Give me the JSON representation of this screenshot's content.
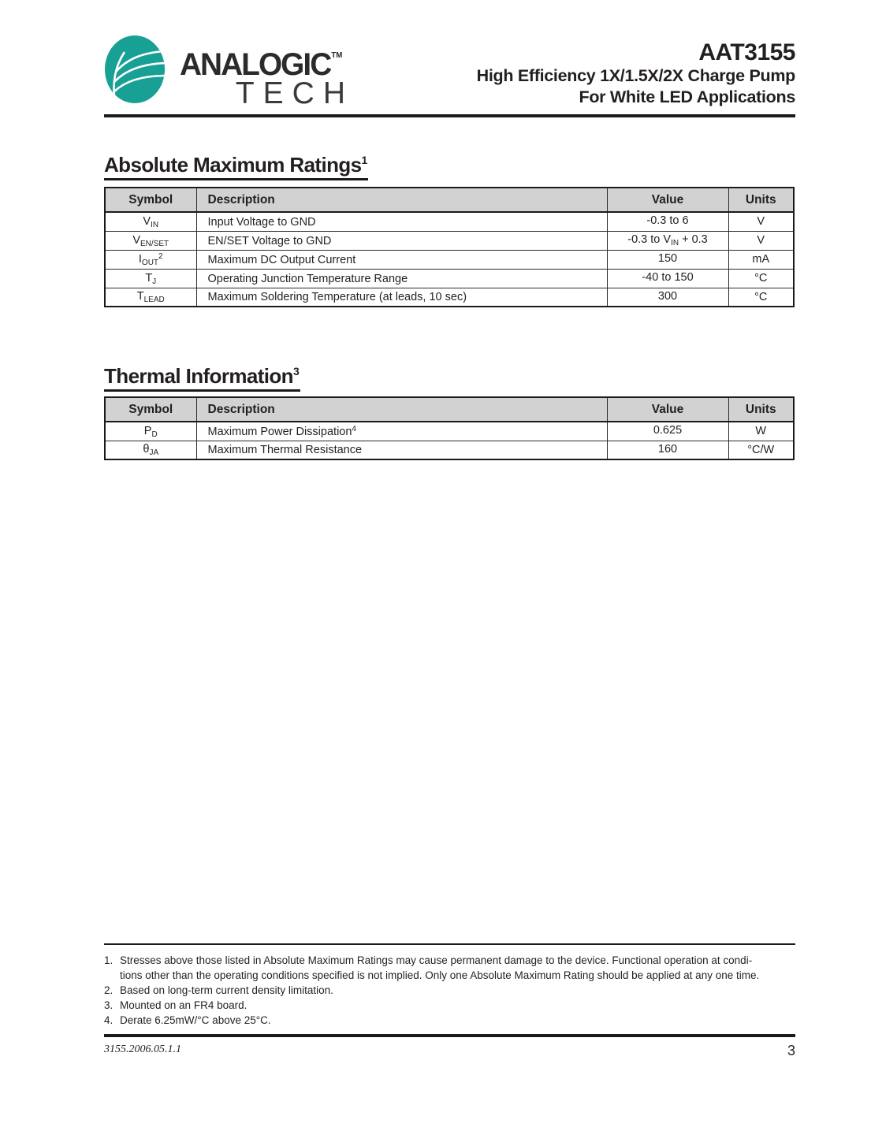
{
  "logo": {
    "name": "ANALOGIC",
    "tm": "TM",
    "name2": "TECH"
  },
  "header": {
    "part_number": "AAT3155",
    "subtitle1": "High Efficiency 1X/1.5X/2X Charge Pump",
    "subtitle2": "For White LED Applications"
  },
  "colors": {
    "brand_teal": "#18A095",
    "table_header_bg": "#D2D2D2",
    "rule_black": "#1A1A1A"
  },
  "abs_max_table": {
    "title": "Absolute Maximum Ratings",
    "title_sup": "1",
    "headers": {
      "symbol": "Symbol",
      "description": "Description",
      "value": "Value",
      "units": "Units"
    },
    "rows": [
      {
        "sym": "V",
        "sym_sub": "IN",
        "sym_sup": "",
        "desc": "Input Voltage to GND",
        "desc_sup": "",
        "val": {
          "pre": "-0.3 to 6",
          "sub": "",
          "post": ""
        },
        "units": "V"
      },
      {
        "sym": "V",
        "sym_sub": "EN/SET",
        "sym_sup": "",
        "desc": "EN/SET Voltage to GND",
        "desc_sup": "",
        "val": {
          "pre": "-0.3 to V",
          "sub": "IN",
          "post": " + 0.3"
        },
        "units": "V"
      },
      {
        "sym": "I",
        "sym_sub": "OUT",
        "sym_sup": "2",
        "desc": "Maximum DC Output Current",
        "desc_sup": "",
        "val": {
          "pre": "150",
          "sub": "",
          "post": ""
        },
        "units": "mA"
      },
      {
        "sym": "T",
        "sym_sub": "J",
        "sym_sup": "",
        "desc": "Operating Junction Temperature Range",
        "desc_sup": "",
        "val": {
          "pre": "-40 to 150",
          "sub": "",
          "post": ""
        },
        "units": "°C"
      },
      {
        "sym": "T",
        "sym_sub": "LEAD",
        "sym_sup": "",
        "desc": "Maximum Soldering Temperature (at leads, 10 sec)",
        "desc_sup": "",
        "val": {
          "pre": "300",
          "sub": "",
          "post": ""
        },
        "units": "°C"
      }
    ]
  },
  "thermal_table": {
    "title": "Thermal Information",
    "title_sup": "3",
    "headers": {
      "symbol": "Symbol",
      "description": "Description",
      "value": "Value",
      "units": "Units"
    },
    "rows": [
      {
        "sym": "P",
        "sym_sub": "D",
        "sym_sup": "",
        "desc": "Maximum Power Dissipation",
        "desc_sup": "4",
        "val": {
          "pre": "0.625",
          "sub": "",
          "post": ""
        },
        "units": "W"
      },
      {
        "sym": "θ",
        "sym_sub": "JA",
        "sym_sup": "",
        "desc": "Maximum Thermal Resistance",
        "desc_sup": "",
        "val": {
          "pre": "160",
          "sub": "",
          "post": ""
        },
        "units": "°C/W"
      }
    ]
  },
  "footnotes": [
    {
      "marker": "1.",
      "text": "Stresses above those listed in Absolute Maximum Ratings may cause permanent damage to the device. Functional operation at condi-"
    },
    {
      "marker": "",
      "text": "tions other than the operating conditions specified is not implied. Only one Absolute Maximum Rating should be applied at any one time."
    },
    {
      "marker": "2.",
      "text": "Based on long-term current density limitation."
    },
    {
      "marker": "3.",
      "text": "Mounted on an FR4 board."
    },
    {
      "marker": "4.",
      "text": "Derate 6.25mW/°C above 25°C."
    }
  ],
  "footer": {
    "doc_code": "3155.2006.05.1.1",
    "page_number": "3"
  }
}
